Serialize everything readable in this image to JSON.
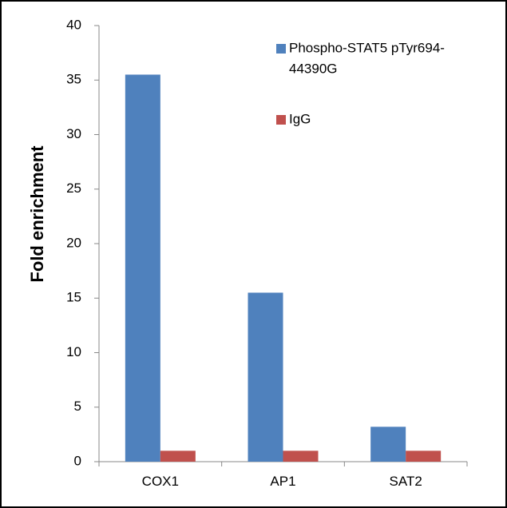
{
  "chart_data": {
    "type": "bar",
    "title": "",
    "xlabel": "",
    "ylabel": "Fold enrichment",
    "ylim": [
      0,
      40
    ],
    "yticks": [
      0,
      5,
      10,
      15,
      20,
      25,
      30,
      35,
      40
    ],
    "categories": [
      "COX1",
      "AP1",
      "SAT2"
    ],
    "series": [
      {
        "name": "Phospho-STAT5 pTyr694-44390G",
        "name_lines": [
          "Phospho-STAT5 pTyr694-",
          "44390G"
        ],
        "color": "#4F81BD",
        "values": [
          35.5,
          15.5,
          3.2
        ]
      },
      {
        "name": "IgG",
        "name_lines": [
          "IgG"
        ],
        "color": "#C0504D",
        "values": [
          1.0,
          1.0,
          1.0
        ]
      }
    ],
    "legend_position": "top-right",
    "grid": false
  }
}
